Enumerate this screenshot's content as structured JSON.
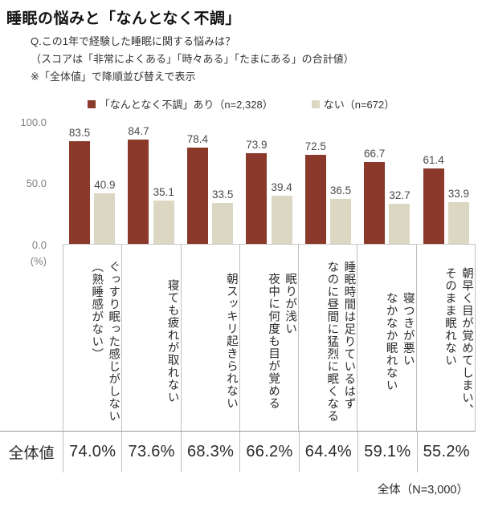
{
  "title": "睡眠の悩みと「なんとなく不調」",
  "subtitle_lines": {
    "q": "Q.この1年で経験した睡眠に関する悩みは？",
    "score_note": "（スコアは「非常によくある」「時々ある」「たまにある」の合計値）",
    "sort_note": "※「全体値」で降順並び替えで表示"
  },
  "legend": {
    "series1_label": "「なんとなく不調」あり（n=2,328）",
    "series2_label": "ない（n=672）"
  },
  "colors": {
    "series1": "#8a392a",
    "series2": "#dbd7c3",
    "axis_text": "#7f7f7f",
    "grid_line": "#bfbfbf"
  },
  "y_axis": {
    "tick_100": "100.0",
    "tick_50": "50.0",
    "tick_0": "0.0",
    "unit": "(%)"
  },
  "chart_data": {
    "type": "bar",
    "title": "睡眠の悩みと「なんとなく不調」",
    "categories": [
      "ぐっすり眠った感じがしない\n（熟睡感がない）",
      "寝ても疲れが取れない",
      "朝スッキリ起きられない",
      "眠りが浅い\n夜中に何度も目が覚める",
      "睡眠時間は足りているはず\nなのに昼間に猛烈に眠くなる",
      "寝つきが悪い\nなかなか眠れない",
      "朝早く目が覚めてしまい、\nそのまま眠れない"
    ],
    "series": [
      {
        "name": "「なんとなく不調」あり（n=2,328）",
        "values": [
          83.5,
          84.7,
          78.4,
          73.9,
          72.5,
          66.7,
          61.4
        ]
      },
      {
        "name": "ない（n=672）",
        "values": [
          40.9,
          35.1,
          33.5,
          39.4,
          36.5,
          32.7,
          33.9
        ]
      }
    ],
    "overall_values": [
      74.0,
      73.6,
      68.3,
      66.2,
      64.4,
      59.1,
      55.2
    ],
    "xlabel": "",
    "ylabel": "(%)",
    "ylim": [
      0,
      100
    ],
    "yticks": [
      0.0,
      50.0,
      100.0
    ],
    "grid": false,
    "legend_position": "top"
  },
  "summary": {
    "row_header": "全体値",
    "values": [
      "74.0%",
      "73.6%",
      "68.3%",
      "66.2%",
      "64.4%",
      "59.1%",
      "55.2%"
    ]
  },
  "footer": "全体（N=3,000）"
}
